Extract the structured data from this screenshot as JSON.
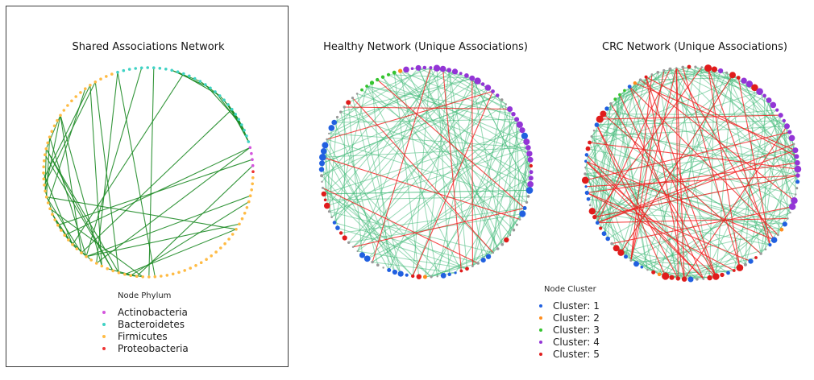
{
  "background": "#ffffff",
  "palette": {
    "nodes": {
      "act": "#d455dd",
      "bac": "#3fd2c4",
      "fir": "#ffbb44",
      "pro": "#ee3434",
      "c1": "#2160e0",
      "c2": "#ff8c1c",
      "c3": "#35c42f",
      "c4": "#9335d6",
      "c5": "#e01c1c",
      "gray": "#999999"
    },
    "edges": {
      "g1": "#1e8b26",
      "g2": "#41ba79",
      "r": "#f21d1d"
    }
  },
  "panels": [
    {
      "id": "shared",
      "title": "Shared Associations Network",
      "boxed": true,
      "seed": 11,
      "start_angle": 107,
      "node_size": [
        1.8,
        1.8
      ],
      "sizes": {},
      "segments": [
        [
          "bac",
          28
        ],
        [
          "act",
          4
        ],
        [
          "pro",
          1
        ],
        [
          "fir",
          75
        ]
      ],
      "edge_groups": [
        {
          "color": "g1",
          "type": "bundle",
          "from": [
            8,
            27
          ],
          "count": 15,
          "w": 1.1,
          "o": 0.95
        },
        {
          "color": "g1",
          "type": "pair",
          "from": [
            60,
            92
          ],
          "to": [
            60,
            96
          ],
          "count": 22,
          "w": 1.1,
          "o": 0.9
        },
        {
          "color": "g1",
          "type": "pair",
          "from": [
            62,
            88
          ],
          "to": [
            95,
            107
          ],
          "count": 8,
          "w": 1.1,
          "o": 0.9
        },
        {
          "color": "g1",
          "type": "pair",
          "from": [
            0,
            28
          ],
          "to": [
            55,
            78
          ],
          "count": 6,
          "w": 1.1,
          "o": 0.9
        },
        {
          "color": "g1",
          "type": "pair",
          "from": [
            28,
            32
          ],
          "to": [
            55,
            80
          ],
          "count": 3,
          "w": 1.1,
          "o": 0.9
        },
        {
          "color": "g1",
          "type": "pair",
          "from": [
            33,
            42
          ],
          "to": [
            60,
            82
          ],
          "count": 5,
          "w": 1.1,
          "o": 0.9
        },
        {
          "color": "g1",
          "type": "pair",
          "from": [
            0,
            1
          ],
          "to": [
            58,
            60
          ],
          "count": 1,
          "w": 1.1,
          "o": 0.9
        }
      ]
    },
    {
      "id": "healthy",
      "title": "Healthy Network (Unique Associations)",
      "boxed": false,
      "seed": 23,
      "start_angle": 128,
      "node_size": [
        1.4,
        2.4
      ],
      "sizes": {
        "c1": [
          1.6,
          4.4
        ],
        "c2": [
          1.6,
          2.6
        ],
        "c3": [
          1.8,
          3.0
        ],
        "c4": [
          1.8,
          4.2
        ],
        "c5": [
          1.8,
          3.8
        ],
        "gray": [
          1.1,
          2.0
        ]
      },
      "segments": [
        [
          "c3",
          7
        ],
        [
          "c2",
          1
        ],
        [
          "c4",
          17
        ],
        [
          "gray",
          2
        ],
        [
          "c4",
          5
        ],
        [
          "c1",
          1
        ],
        [
          "c4",
          4
        ],
        [
          "c5",
          1
        ],
        [
          "c4",
          3
        ],
        [
          "c1",
          1
        ],
        [
          "gray",
          2
        ],
        [
          "c1",
          2
        ],
        [
          "gray",
          4
        ],
        [
          "c5",
          1
        ],
        [
          "gray",
          3
        ],
        [
          "c1",
          2
        ],
        [
          "gray",
          2
        ],
        [
          "c5",
          2
        ],
        [
          "c1",
          3
        ],
        [
          "gray",
          2
        ],
        [
          "c2",
          1
        ],
        [
          "c5",
          2
        ],
        [
          "c1",
          4
        ],
        [
          "gray",
          3
        ],
        [
          "c1",
          2
        ],
        [
          "gray",
          3
        ],
        [
          "c5",
          2
        ],
        [
          "c1",
          2
        ],
        [
          "gray",
          2
        ],
        [
          "c5",
          3
        ],
        [
          "gray",
          3
        ],
        [
          "c1",
          5
        ],
        [
          "gray",
          2
        ],
        [
          "c1",
          2
        ],
        [
          "gray",
          3
        ],
        [
          "c5",
          1
        ],
        [
          "gray",
          2
        ]
      ],
      "edge_groups": [
        {
          "color": "g2",
          "type": "random",
          "min_sep": 5,
          "count": 138,
          "w": 1.0,
          "o": 0.55
        },
        {
          "color": "r",
          "type": "long",
          "count": 11,
          "w": 1.1,
          "o": 0.8
        }
      ]
    },
    {
      "id": "crc",
      "title": "CRC Network (Unique Associations)",
      "boxed": false,
      "seed": 37,
      "start_angle": 105,
      "node_size": [
        1.4,
        2.4
      ],
      "sizes": {
        "c1": [
          1.6,
          4.2
        ],
        "c2": [
          1.6,
          2.8
        ],
        "c3": [
          1.6,
          2.8
        ],
        "c4": [
          1.8,
          4.4
        ],
        "c5": [
          1.8,
          4.6
        ],
        "gray": [
          1.1,
          2.0
        ]
      },
      "segments": [
        [
          "gray",
          4
        ],
        [
          "c5",
          1
        ],
        [
          "gray",
          2
        ],
        [
          "c5",
          2
        ],
        [
          "c4",
          1
        ],
        [
          "gray",
          1
        ],
        [
          "c5",
          2
        ],
        [
          "c4",
          2
        ],
        [
          "c5",
          1
        ],
        [
          "c4",
          10
        ],
        [
          "gray",
          1
        ],
        [
          "c4",
          5
        ],
        [
          "c1",
          1
        ],
        [
          "gray",
          2
        ],
        [
          "c4",
          2
        ],
        [
          "gray",
          2
        ],
        [
          "c1",
          1
        ],
        [
          "c2",
          1
        ],
        [
          "gray",
          1
        ],
        [
          "c1",
          2
        ],
        [
          "gray",
          2
        ],
        [
          "c5",
          1
        ],
        [
          "c1",
          1
        ],
        [
          "gray",
          1
        ],
        [
          "c5",
          2
        ],
        [
          "c1",
          1
        ],
        [
          "c5",
          3
        ],
        [
          "gray",
          2
        ],
        [
          "c1",
          1
        ],
        [
          "c5",
          4
        ],
        [
          "c2",
          1
        ],
        [
          "c5",
          1
        ],
        [
          "gray",
          1
        ],
        [
          "c1",
          2
        ],
        [
          "gray",
          1
        ],
        [
          "c1",
          1
        ],
        [
          "c5",
          2
        ],
        [
          "gray",
          1
        ],
        [
          "c1",
          2
        ],
        [
          "c5",
          1
        ],
        [
          "c1",
          1
        ],
        [
          "c5",
          2
        ],
        [
          "gray",
          1
        ],
        [
          "c1",
          3
        ],
        [
          "c5",
          1
        ],
        [
          "gray",
          2
        ],
        [
          "c1",
          2
        ],
        [
          "c5",
          2
        ],
        [
          "gray",
          2
        ],
        [
          "c1",
          1
        ],
        [
          "c5",
          2
        ],
        [
          "c1",
          1
        ],
        [
          "gray",
          1
        ],
        [
          "c3",
          3
        ],
        [
          "c1",
          1
        ],
        [
          "c2",
          1
        ],
        [
          "gray",
          1
        ],
        [
          "c5",
          1
        ],
        [
          "gray",
          2
        ]
      ],
      "edge_groups": [
        {
          "color": "g2",
          "type": "random",
          "min_sep": 4,
          "count": 165,
          "w": 1.0,
          "o": 0.55
        },
        {
          "color": "r",
          "type": "long",
          "count": 42,
          "w": 1.1,
          "o": 0.8
        }
      ]
    }
  ],
  "legends": [
    {
      "id": "phylum",
      "title": "Node Phylum",
      "items": [
        {
          "label": "Actinobacteria",
          "color": "act"
        },
        {
          "label": "Bacteroidetes",
          "color": "bac"
        },
        {
          "label": "Firmicutes",
          "color": "fir"
        },
        {
          "label": "Proteobacteria",
          "color": "pro"
        }
      ]
    },
    {
      "id": "cluster",
      "title": "Node Cluster",
      "items": [
        {
          "label": "Cluster: 1",
          "color": "c1"
        },
        {
          "label": "Cluster: 2",
          "color": "c2"
        },
        {
          "label": "Cluster: 3",
          "color": "c3"
        },
        {
          "label": "Cluster: 4",
          "color": "c4"
        },
        {
          "label": "Cluster: 5",
          "color": "c5"
        }
      ]
    }
  ]
}
